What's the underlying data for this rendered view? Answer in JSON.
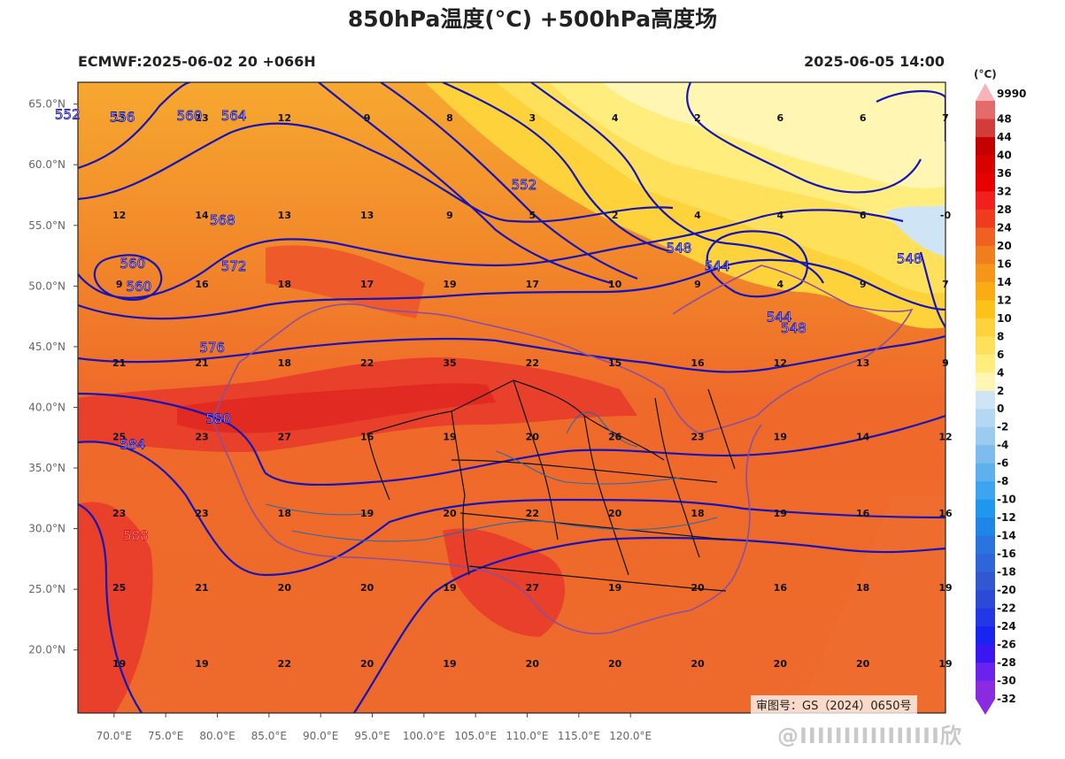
{
  "title": "850hPa温度(°C) +500hPa高度场",
  "subtitle_left": "ECMWF:2025-06-02 20 +066H",
  "subtitle_right": "2025-06-05 14:00",
  "credit": "审图号：GS（2024）0650号",
  "watermark": "@IIIIIIIIIIIIIIII欣",
  "colorbar": {
    "unit": "(°C)",
    "top_label": "9990",
    "levels": [
      48,
      44,
      40,
      36,
      32,
      28,
      24,
      20,
      16,
      14,
      12,
      10,
      8,
      6,
      4,
      2,
      0,
      -2,
      -4,
      -6,
      -8,
      -10,
      -12,
      -14,
      -16,
      -18,
      -20,
      -22,
      -24,
      -26,
      -28,
      -30,
      -32
    ],
    "colors": [
      "#e36b6b",
      "#d43b3b",
      "#c40000",
      "#d90000",
      "#e60000",
      "#f21f1f",
      "#f03c1e",
      "#f06020",
      "#f07d1e",
      "#f5951a",
      "#f9ac14",
      "#fbc21a",
      "#fdd23a",
      "#ffe05a",
      "#ffee7e",
      "#fff6b4",
      "#cfe5f6",
      "#b4d8f4",
      "#9ccbf1",
      "#7fbcee",
      "#5fb0ef",
      "#3ca5f0",
      "#1f97ef",
      "#1e86e8",
      "#2a74e0",
      "#2f64da",
      "#3257d2",
      "#2d49d8",
      "#2437e6",
      "#1a24f0",
      "#3a16f0",
      "#6a22ee",
      "#8a2be2"
    ]
  },
  "map": {
    "lon_ticks": [
      "70.0°E",
      "75.0°E",
      "80.0°E",
      "85.0°E",
      "90.0°E",
      "95.0°E",
      "100.0°E",
      "105.0°E",
      "110.0°E",
      "115.0°E",
      "120.0°E"
    ],
    "lat_ticks": [
      "65.0°N",
      "60.0°N",
      "55.0°N",
      "50.0°N",
      "45.0°N",
      "40.0°N",
      "35.0°N",
      "30.0°N",
      "25.0°N",
      "20.0°N"
    ],
    "temps": [
      {
        "v": "13",
        "lon": 70.5,
        "lat": 63.8
      },
      {
        "v": "13",
        "lon": 78.5,
        "lat": 63.8
      },
      {
        "v": "12",
        "lon": 86.5,
        "lat": 63.8
      },
      {
        "v": "9",
        "lon": 94.5,
        "lat": 63.8
      },
      {
        "v": "8",
        "lon": 102.5,
        "lat": 63.8
      },
      {
        "v": "3",
        "lon": 110.5,
        "lat": 63.8
      },
      {
        "v": "4",
        "lon": 118.5,
        "lat": 63.8
      },
      {
        "v": "2",
        "lon": 126.5,
        "lat": 63.8
      },
      {
        "v": "6",
        "lon": 134.5,
        "lat": 63.8
      },
      {
        "v": "6",
        "lon": 142.5,
        "lat": 63.8
      },
      {
        "v": "7",
        "lon": 150.5,
        "lat": 63.8
      },
      {
        "v": "12",
        "lon": 70.5,
        "lat": 55.8
      },
      {
        "v": "14",
        "lon": 78.5,
        "lat": 55.8
      },
      {
        "v": "13",
        "lon": 86.5,
        "lat": 55.8
      },
      {
        "v": "13",
        "lon": 94.5,
        "lat": 55.8
      },
      {
        "v": "9",
        "lon": 102.5,
        "lat": 55.8
      },
      {
        "v": "5",
        "lon": 110.5,
        "lat": 55.8
      },
      {
        "v": "2",
        "lon": 118.5,
        "lat": 55.8
      },
      {
        "v": "4",
        "lon": 126.5,
        "lat": 55.8
      },
      {
        "v": "4",
        "lon": 134.5,
        "lat": 55.8
      },
      {
        "v": "6",
        "lon": 142.5,
        "lat": 55.8
      },
      {
        "v": "-0",
        "lon": 150.5,
        "lat": 55.8
      },
      {
        "v": "9",
        "lon": 70.5,
        "lat": 50.1
      },
      {
        "v": "16",
        "lon": 78.5,
        "lat": 50.1
      },
      {
        "v": "18",
        "lon": 86.5,
        "lat": 50.1
      },
      {
        "v": "17",
        "lon": 94.5,
        "lat": 50.1
      },
      {
        "v": "19",
        "lon": 102.5,
        "lat": 50.1
      },
      {
        "v": "17",
        "lon": 110.5,
        "lat": 50.1
      },
      {
        "v": "10",
        "lon": 118.5,
        "lat": 50.1
      },
      {
        "v": "9",
        "lon": 126.5,
        "lat": 50.1
      },
      {
        "v": "4",
        "lon": 134.5,
        "lat": 50.1
      },
      {
        "v": "9",
        "lon": 142.5,
        "lat": 50.1
      },
      {
        "v": "7",
        "lon": 150.5,
        "lat": 50.1
      },
      {
        "v": "21",
        "lon": 70.5,
        "lat": 43.6
      },
      {
        "v": "21",
        "lon": 78.5,
        "lat": 43.6
      },
      {
        "v": "18",
        "lon": 86.5,
        "lat": 43.6
      },
      {
        "v": "22",
        "lon": 94.5,
        "lat": 43.6
      },
      {
        "v": "35",
        "lon": 102.5,
        "lat": 43.6
      },
      {
        "v": "22",
        "lon": 110.5,
        "lat": 43.6
      },
      {
        "v": "15",
        "lon": 118.5,
        "lat": 43.6
      },
      {
        "v": "16",
        "lon": 126.5,
        "lat": 43.6
      },
      {
        "v": "12",
        "lon": 134.5,
        "lat": 43.6
      },
      {
        "v": "13",
        "lon": 142.5,
        "lat": 43.6
      },
      {
        "v": "9",
        "lon": 150.5,
        "lat": 43.6
      },
      {
        "v": "25",
        "lon": 70.5,
        "lat": 37.5
      },
      {
        "v": "23",
        "lon": 78.5,
        "lat": 37.5
      },
      {
        "v": "27",
        "lon": 86.5,
        "lat": 37.5
      },
      {
        "v": "16",
        "lon": 94.5,
        "lat": 37.5
      },
      {
        "v": "19",
        "lon": 102.5,
        "lat": 37.5
      },
      {
        "v": "20",
        "lon": 110.5,
        "lat": 37.5
      },
      {
        "v": "26",
        "lon": 118.5,
        "lat": 37.5
      },
      {
        "v": "23",
        "lon": 126.5,
        "lat": 37.5
      },
      {
        "v": "19",
        "lon": 134.5,
        "lat": 37.5
      },
      {
        "v": "14",
        "lon": 142.5,
        "lat": 37.5
      },
      {
        "v": "12",
        "lon": 150.5,
        "lat": 37.5
      },
      {
        "v": "23",
        "lon": 70.5,
        "lat": 31.2
      },
      {
        "v": "23",
        "lon": 78.5,
        "lat": 31.2
      },
      {
        "v": "18",
        "lon": 86.5,
        "lat": 31.2
      },
      {
        "v": "19",
        "lon": 94.5,
        "lat": 31.2
      },
      {
        "v": "20",
        "lon": 102.5,
        "lat": 31.2
      },
      {
        "v": "22",
        "lon": 110.5,
        "lat": 31.2
      },
      {
        "v": "20",
        "lon": 118.5,
        "lat": 31.2
      },
      {
        "v": "18",
        "lon": 126.5,
        "lat": 31.2
      },
      {
        "v": "19",
        "lon": 134.5,
        "lat": 31.2
      },
      {
        "v": "16",
        "lon": 142.5,
        "lat": 31.2
      },
      {
        "v": "16",
        "lon": 150.5,
        "lat": 31.2
      },
      {
        "v": "25",
        "lon": 70.5,
        "lat": 25.1
      },
      {
        "v": "21",
        "lon": 78.5,
        "lat": 25.1
      },
      {
        "v": "20",
        "lon": 86.5,
        "lat": 25.1
      },
      {
        "v": "20",
        "lon": 94.5,
        "lat": 25.1
      },
      {
        "v": "19",
        "lon": 102.5,
        "lat": 25.1
      },
      {
        "v": "27",
        "lon": 110.5,
        "lat": 25.1
      },
      {
        "v": "19",
        "lon": 118.5,
        "lat": 25.1
      },
      {
        "v": "20",
        "lon": 126.5,
        "lat": 25.1
      },
      {
        "v": "16",
        "lon": 134.5,
        "lat": 25.1
      },
      {
        "v": "18",
        "lon": 142.5,
        "lat": 25.1
      },
      {
        "v": "19",
        "lon": 150.5,
        "lat": 25.1
      },
      {
        "v": "19",
        "lon": 70.5,
        "lat": 18.8
      },
      {
        "v": "19",
        "lon": 78.5,
        "lat": 18.8
      },
      {
        "v": "22",
        "lon": 86.5,
        "lat": 18.8
      },
      {
        "v": "20",
        "lon": 94.5,
        "lat": 18.8
      },
      {
        "v": "19",
        "lon": 102.5,
        "lat": 18.8
      },
      {
        "v": "20",
        "lon": 110.5,
        "lat": 18.8
      },
      {
        "v": "20",
        "lon": 118.5,
        "lat": 18.8
      },
      {
        "v": "20",
        "lon": 126.5,
        "lat": 18.8
      },
      {
        "v": "20",
        "lon": 134.5,
        "lat": 18.8
      },
      {
        "v": "20",
        "lon": 142.5,
        "lat": 18.8
      },
      {
        "v": "19",
        "lon": 150.5,
        "lat": 18.8
      }
    ],
    "contours": [
      {
        "v": "552",
        "lon": 65.5,
        "lat": 64.1
      },
      {
        "v": "556",
        "lon": 70.8,
        "lat": 63.9
      },
      {
        "v": "560",
        "lon": 77.3,
        "lat": 64.0
      },
      {
        "v": "564",
        "lon": 81.6,
        "lat": 64.0
      },
      {
        "v": "568",
        "lon": 80.5,
        "lat": 55.4
      },
      {
        "v": "560",
        "lon": 71.8,
        "lat": 51.8
      },
      {
        "v": "560",
        "lon": 72.4,
        "lat": 49.9
      },
      {
        "v": "572",
        "lon": 81.6,
        "lat": 51.6
      },
      {
        "v": "576",
        "lon": 79.5,
        "lat": 44.9
      },
      {
        "v": "580",
        "lon": 80.1,
        "lat": 39.0
      },
      {
        "v": "584",
        "lon": 71.8,
        "lat": 36.9
      },
      {
        "v": "588",
        "lon": 72.1,
        "lat": 29.4
      },
      {
        "v": "552",
        "lon": 109.7,
        "lat": 58.3
      },
      {
        "v": "548",
        "lon": 124.7,
        "lat": 53.1
      },
      {
        "v": "544",
        "lon": 128.4,
        "lat": 51.6
      },
      {
        "v": "544",
        "lon": 134.4,
        "lat": 47.4
      },
      {
        "v": "548",
        "lon": 135.8,
        "lat": 46.5
      },
      {
        "v": "548",
        "lon": 147.0,
        "lat": 52.2
      }
    ]
  }
}
